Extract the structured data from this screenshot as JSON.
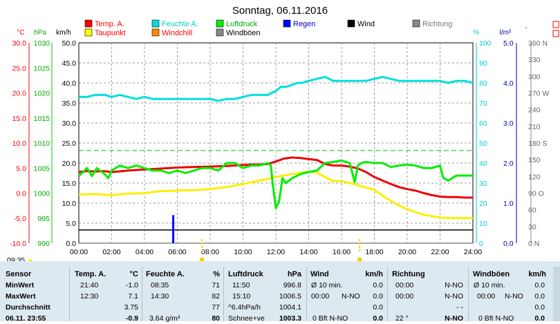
{
  "chart_data": {
    "type": "line",
    "title": "Sonntag, 06.11.2016",
    "x_ticks": [
      "00:00",
      "02:00",
      "04:00",
      "06:00",
      "08:00",
      "10:00",
      "12:00",
      "14:00",
      "16:00",
      "18:00",
      "20:00",
      "22:00",
      "24:00"
    ],
    "xlim": [
      0,
      24
    ],
    "axes": {
      "temp": {
        "label": "°C",
        "ticks": [
          "30.0",
          "25.0",
          "20.0",
          "15.0",
          "10.0",
          "5.0",
          "0.0",
          "-5.0",
          "-10.0"
        ],
        "ylim": [
          -10,
          30
        ],
        "color": "#ff0000"
      },
      "hpa": {
        "label": "hPa",
        "ticks": [
          "1030",
          "1025",
          "1020",
          "1015",
          "1010",
          "1005",
          "1000",
          "995",
          "990"
        ],
        "ylim": [
          990,
          1030
        ],
        "color": "#00cc00"
      },
      "wind": {
        "label": "km/h",
        "ticks": [
          "50.0",
          "45.0",
          "40.0",
          "35.0",
          "30.0",
          "25.0",
          "20.0",
          "15.0",
          "10.0",
          "5.0",
          "0.0"
        ],
        "ylim": [
          0,
          50
        ],
        "color": "#000000"
      },
      "hum": {
        "label": "%",
        "ticks": [
          "100",
          "90",
          "80",
          "70",
          "60",
          "50",
          "40",
          "30",
          "20",
          "10",
          "0"
        ],
        "ylim": [
          0,
          100
        ],
        "color": "#00cccc"
      },
      "rain": {
        "label": "l/m²",
        "ticks": [
          "5.0",
          "4.0",
          "3.0",
          "2.0",
          "1.0",
          "0.0"
        ],
        "ylim": [
          0,
          5
        ],
        "color": "#0000aa"
      },
      "dir": {
        "label": "°",
        "ticks": [
          "360 N",
          "330",
          "300",
          "270 W",
          "240",
          "210",
          "180 S",
          "150",
          "120",
          "90 O",
          "60",
          "30",
          "0 N"
        ],
        "ylim": [
          0,
          360
        ],
        "color": "#777777"
      }
    },
    "legend": [
      {
        "name": "Temp. A.",
        "color": "#ff0000",
        "text_color": "#ff0000"
      },
      {
        "name": "Feuchte A.",
        "color": "#00dddd",
        "text_color": "#00cccc"
      },
      {
        "name": "Luftdruck",
        "color": "#00ee00",
        "text_color": "#00aa00"
      },
      {
        "name": "Regen",
        "color": "#0000ff",
        "text_color": "#0000cc"
      },
      {
        "name": "Wind",
        "color": "#000000",
        "text_color": "#000000"
      },
      {
        "name": "Richtung",
        "color": "#888888",
        "text_color": "#777777"
      },
      {
        "name": "Taupunkt",
        "color": "#ffff00",
        "text_color": "#ff0000"
      },
      {
        "name": "Windchill",
        "color": "#ff8800",
        "text_color": "#ff0000"
      },
      {
        "name": "Windböen",
        "color": "#888888",
        "text_color": "#000000"
      }
    ],
    "series": [
      {
        "name": "Temp. A.",
        "axis": "temp",
        "color": "#ee0000",
        "x": [
          0,
          0.5,
          1,
          1.5,
          2,
          3,
          4,
          5,
          6,
          7,
          8,
          9,
          10,
          10.5,
          11,
          11.5,
          12,
          12.5,
          13,
          13.5,
          14,
          14.5,
          15,
          15.5,
          16,
          16.5,
          17,
          17.5,
          18,
          18.5,
          19,
          19.5,
          20,
          20.5,
          21,
          21.5,
          22,
          22.5,
          23,
          23.5,
          24
        ],
        "y": [
          4.2,
          4.4,
          4.3,
          4.4,
          4.2,
          4.5,
          4.7,
          4.9,
          5.1,
          5.2,
          5.3,
          5.4,
          5.6,
          5.7,
          5.7,
          5.8,
          6.3,
          6.9,
          7.1,
          7.0,
          6.8,
          6.6,
          5.8,
          5.5,
          5.5,
          5.3,
          4.9,
          4.2,
          3.2,
          2.5,
          1.8,
          1.2,
          0.8,
          0.5,
          0.0,
          -0.4,
          -0.7,
          -0.8,
          -0.8,
          -0.9,
          -0.9
        ]
      },
      {
        "name": "Taupunkt",
        "axis": "temp",
        "color": "#ffee00",
        "x": [
          0,
          1,
          2,
          3,
          4,
          5,
          6,
          7,
          8,
          9,
          10,
          11,
          12,
          13,
          14,
          14.5,
          15,
          15.5,
          16,
          17,
          18,
          18.5,
          19,
          19.5,
          20,
          20.5,
          21,
          22,
          23,
          24
        ],
        "y": [
          -0.3,
          -0.2,
          -0.4,
          -0.1,
          0.0,
          0.4,
          0.5,
          0.6,
          0.8,
          1.2,
          1.8,
          2.5,
          3.2,
          3.8,
          4.3,
          4.1,
          3.2,
          2.4,
          2.4,
          1.6,
          0.6,
          -0.5,
          -1.6,
          -2.5,
          -3.2,
          -3.8,
          -4.3,
          -4.9,
          -5.0,
          -5.0
        ]
      },
      {
        "name": "Feuchte A.",
        "axis": "hum",
        "color": "#00dddd",
        "x": [
          0,
          0.5,
          1,
          1.3,
          1.6,
          2,
          2.5,
          3,
          3.5,
          4,
          4.5,
          5,
          6,
          7,
          8,
          8.5,
          9,
          9.5,
          10,
          10.5,
          11,
          11.5,
          12,
          12.3,
          12.6,
          13,
          13.3,
          13.6,
          14,
          14.5,
          15,
          15.5,
          16,
          16.5,
          17,
          17.5,
          18,
          18.5,
          19,
          19.5,
          20,
          20.5,
          21,
          21.5,
          22,
          22.5,
          23,
          23.5,
          24
        ],
        "y": [
          73,
          73,
          74,
          74,
          74,
          73,
          74,
          73,
          72,
          73,
          72,
          72,
          72,
          72,
          72,
          71,
          72,
          72,
          73,
          74,
          74,
          74,
          76,
          78,
          78,
          79,
          80,
          80,
          81,
          82,
          83,
          81,
          81,
          81,
          81,
          81,
          82,
          83,
          82,
          81,
          81,
          81,
          81,
          81,
          81,
          80,
          81,
          81,
          80
        ]
      },
      {
        "name": "Luftdruck",
        "axis": "hpa",
        "color": "#00ee00",
        "x": [
          0,
          0.5,
          0.8,
          1.1,
          1.5,
          1.8,
          2,
          2.5,
          3,
          3.5,
          4,
          4.5,
          5,
          5.5,
          6,
          6.5,
          7,
          7.5,
          8,
          8.5,
          9,
          9.5,
          10,
          10.5,
          11,
          11.5,
          11.7,
          11.8,
          12,
          12.2,
          12.4,
          12.6,
          13,
          13.5,
          14,
          14.5,
          15,
          15.5,
          16,
          16.5,
          16.8,
          17,
          17.2,
          17.5,
          18,
          18.5,
          19,
          19.5,
          20,
          20.5,
          21,
          21.5,
          22,
          22.2,
          22.5,
          23,
          23.5,
          24
        ],
        "y": [
          1003.4,
          1005,
          1003.4,
          1005,
          1004,
          1003,
          1004.5,
          1005.5,
          1005,
          1005.5,
          1005,
          1004.5,
          1004.5,
          1004,
          1004.5,
          1004,
          1004.5,
          1005,
          1005,
          1004.5,
          1006,
          1006,
          1005,
          1005.5,
          1005.5,
          1006,
          1005.5,
          1002,
          997,
          998.4,
          1003,
          1002,
          1003,
          1003.8,
          1004.2,
          1004.5,
          1006,
          1006.2,
          1006.5,
          1006,
          1002.2,
          1005.5,
          1006,
          1006.2,
          1006,
          1006,
          1005.2,
          1005.5,
          1005.7,
          1005.5,
          1005,
          1005,
          1005.5,
          1003,
          1002.5,
          1003.5,
          1003.5,
          1003.5
        ]
      },
      {
        "name": "Wind",
        "axis": "wind",
        "color": "#000000",
        "x": [
          0,
          24
        ],
        "y": [
          3.3,
          3.3
        ]
      },
      {
        "name": "Windböen",
        "axis": "wind",
        "color": "#888888",
        "x": [
          0,
          24
        ],
        "y": [
          0,
          0
        ]
      },
      {
        "name": "Regen",
        "axis": "rain",
        "color": "#0000ff",
        "type": "bar",
        "x": [
          5.75
        ],
        "y": [
          0.7
        ]
      }
    ],
    "reference_lines": [
      {
        "axis": "temp",
        "value": 8.5,
        "color": "#00bb00",
        "style": "dashed"
      }
    ],
    "markers": [
      {
        "x": 7.5,
        "color": "#ffcc00"
      },
      {
        "x": 17.1,
        "color": "#ffcc00"
      }
    ]
  },
  "below_axis": {
    "time": "09:35"
  },
  "table": {
    "headers": [
      {
        "label": "Sensor",
        "unit": ""
      },
      {
        "label": "Temp. A.",
        "unit": "°C"
      },
      {
        "label": "Feuchte A.",
        "unit": "%"
      },
      {
        "label": "Luftdruck",
        "unit": "hPa"
      },
      {
        "label": "Wind",
        "unit": "km/h"
      },
      {
        "label": "Richtung",
        "unit": ""
      },
      {
        "label": "Windböen",
        "unit": "km/h"
      }
    ],
    "rows": [
      {
        "label": "MinWert",
        "temp_t": "21:40",
        "temp_v": "-1.0",
        "hum_t": "08:35",
        "hum_v": "71",
        "pres_t": "11:50",
        "pres_v": "996.8",
        "wind_t": "Ø 10 min.",
        "wind_v": "0.0",
        "dir_t": "00:00",
        "dir_v": "N-NO",
        "gust_t": "Ø 10 min.",
        "gust_v": "0.0"
      },
      {
        "label": "MaxWert",
        "temp_t": "12:30",
        "temp_v": "7.1",
        "hum_t": "14:30",
        "hum_v": "82",
        "pres_t": "15:10",
        "pres_v": "1006.5",
        "wind_t": "00:00",
        "wind_d": "N-NO",
        "wind_v": "0.0",
        "dir_t": "00:00",
        "dir_v": "N-NO",
        "gust_t": "00:00",
        "gust_d": "N-NO",
        "gust_v": "0.0"
      },
      {
        "label": "Durchschnitt",
        "temp_v": "3.75",
        "hum_v": "77",
        "pres_t": "^6.4hPa/h",
        "pres_v": "1004.1",
        "wind_v": "0.0",
        "dir_v": "- -",
        "gust_v": "0.0"
      },
      {
        "label": "06.11. 23:55",
        "temp_v": "-0.9",
        "hum_t": "3.64 g/m³",
        "hum_v": "80",
        "pres_t": "Schnee+ve",
        "pres_v": "1003.3",
        "wind_t": "0 Bft N-NO",
        "wind_v": "0.0",
        "dir_t": "22 °",
        "dir_v": "N-NO",
        "gust_t": "0 Bft N-NO",
        "gust_v": "0.0"
      }
    ]
  }
}
